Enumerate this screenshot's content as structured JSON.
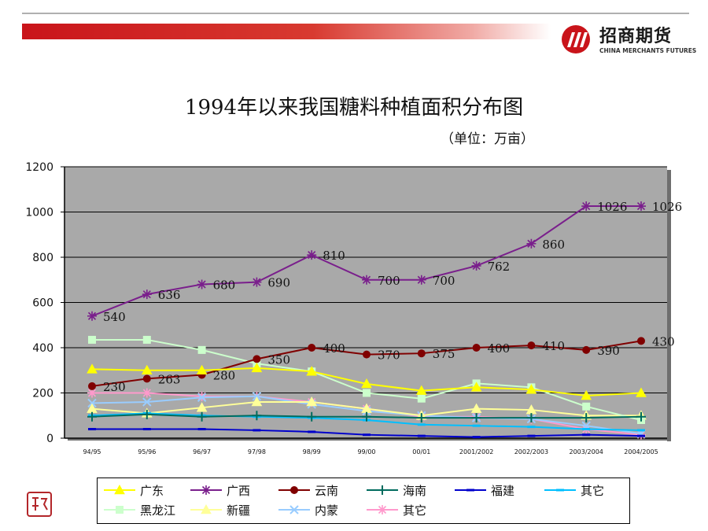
{
  "header": {
    "brand_cn": "招商期货",
    "brand_en": "CHINA MERCHANTS FUTURES",
    "brand_color": "#c9141a"
  },
  "title": "1994年以来我国糖料种植面积分布图",
  "unit": "（单位：万亩）",
  "chart_data": {
    "type": "line",
    "title": "1994年以来我国糖料种植面积分布图",
    "unit": "（单位：万亩）",
    "categories": [
      "94/95",
      "95/96",
      "96/97",
      "97/98",
      "98/99",
      "99/00",
      "00/01",
      "2001/2002",
      "2002/2003",
      "2003/2004",
      "2004/2005"
    ],
    "ylim": [
      0,
      1200
    ],
    "yticks": [
      "0",
      "200",
      "400",
      "600",
      "800",
      "1000",
      "1200"
    ],
    "grid": true,
    "legend_position": "bottom",
    "plot_background": "#a9a9a9",
    "series": [
      {
        "name": "广东",
        "color": "#ffff00",
        "marker": "triangle",
        "values": [
          305,
          300,
          300,
          310,
          295,
          240,
          210,
          225,
          215,
          188,
          200
        ]
      },
      {
        "name": "广西",
        "color": "#7a1f8c",
        "marker": "star",
        "labels": true,
        "values": [
          540,
          636,
          680,
          690,
          810,
          700,
          700,
          762,
          860,
          1026,
          1026
        ]
      },
      {
        "name": "云南",
        "color": "#800000",
        "marker": "circle",
        "labels": true,
        "values": [
          230,
          263,
          280,
          350,
          400,
          370,
          375,
          400,
          410,
          390,
          430
        ]
      },
      {
        "name": "海南",
        "color": "#006b5e",
        "marker": "plus",
        "values": [
          95,
          105,
          95,
          100,
          95,
          95,
          90,
          90,
          90,
          90,
          95
        ]
      },
      {
        "name": "福建",
        "color": "#0000cc",
        "marker": "dash",
        "values": [
          40,
          40,
          40,
          35,
          28,
          15,
          10,
          5,
          10,
          15,
          10
        ]
      },
      {
        "name": "其它",
        "color": "#00bfff",
        "marker": "dash",
        "values": [
          100,
          110,
          100,
          95,
          90,
          80,
          60,
          55,
          50,
          40,
          35
        ]
      },
      {
        "name": "黑龙江",
        "color": "#ccffcc",
        "marker": "square",
        "values": [
          435,
          435,
          390,
          330,
          295,
          200,
          175,
          242,
          225,
          140,
          80
        ]
      },
      {
        "name": "新疆",
        "color": "#ffff99",
        "marker": "triangle",
        "values": [
          130,
          110,
          135,
          160,
          160,
          130,
          100,
          130,
          125,
          100,
          100
        ]
      },
      {
        "name": "内蒙",
        "color": "#99ccff",
        "marker": "x",
        "values": [
          155,
          160,
          180,
          185,
          150,
          120,
          100,
          90,
          85,
          55,
          20
        ]
      },
      {
        "name": "其它",
        "color": "#ff99cc",
        "marker": "star",
        "values": [
          200,
          200,
          185,
          185,
          160,
          130,
          95,
          95,
          85,
          40,
          15
        ]
      }
    ]
  }
}
